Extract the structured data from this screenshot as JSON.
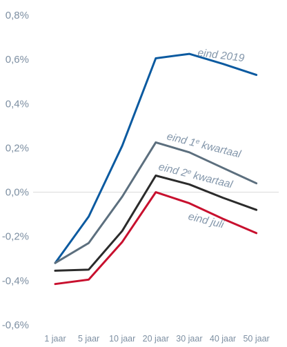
{
  "chart_data": {
    "type": "line",
    "title": "",
    "xlabel": "",
    "ylabel": "",
    "x": [
      "1 jaar",
      "5 jaar",
      "10 jaar",
      "20 jaar",
      "30 jaar",
      "40 jaar",
      "50 jaar"
    ],
    "ylim": [
      -0.6,
      0.8
    ],
    "yticks": [
      -0.6,
      -0.4,
      -0.2,
      0.0,
      0.2,
      0.4,
      0.6,
      0.8
    ],
    "ytick_labels": [
      "-0,6%",
      "-0,4%",
      "-0,2%",
      "0,0%",
      "0,2%",
      "0,4%",
      "0,6%",
      "0,8%"
    ],
    "grid": false,
    "legend": "inline labels",
    "series": [
      {
        "name": "eind 2019",
        "color": "#0b5aa0",
        "values": [
          -0.32,
          -0.11,
          0.21,
          0.605,
          0.625,
          0.58,
          0.53
        ]
      },
      {
        "name": "eind 1e kwartaal",
        "label_base": "eind 1",
        "label_sup": "e",
        "label_tail": " kwartaal",
        "color": "#5c6f7e",
        "values": [
          -0.32,
          -0.23,
          -0.02,
          0.225,
          0.18,
          0.11,
          0.04
        ]
      },
      {
        "name": "eind 2e kwartaal",
        "label_base": "eind 2",
        "label_sup": "e",
        "label_tail": " kwartaal",
        "color": "#2b2b2b",
        "values": [
          -0.355,
          -0.35,
          -0.175,
          0.075,
          0.035,
          -0.025,
          -0.08
        ]
      },
      {
        "name": "eind juli",
        "color": "#c8102e",
        "values": [
          -0.415,
          -0.395,
          -0.225,
          0.0,
          -0.05,
          -0.12,
          -0.185
        ]
      }
    ]
  }
}
